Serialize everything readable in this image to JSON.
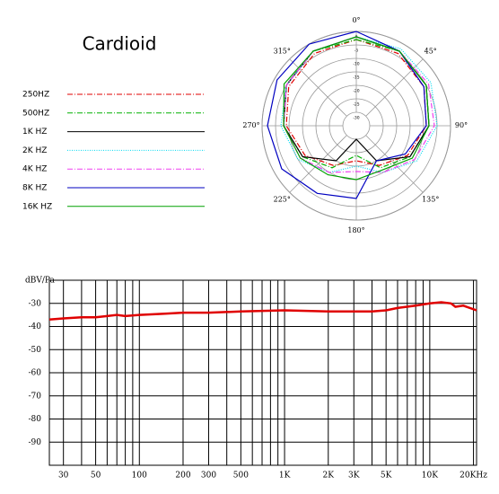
{
  "chart_data": [
    {
      "type": "polar",
      "title": "Cardioid",
      "theta": [
        0,
        30,
        60,
        90,
        120,
        150,
        180,
        210,
        240,
        270,
        300,
        330
      ],
      "angle_ticks": [
        {
          "value": 0,
          "label": "0°"
        },
        {
          "value": 45,
          "label": "45°"
        },
        {
          "value": 90,
          "label": "90°"
        },
        {
          "value": 135,
          "label": "135°"
        },
        {
          "value": 180,
          "label": "180°"
        },
        {
          "value": 225,
          "label": "225°"
        },
        {
          "value": 270,
          "label": "270°"
        },
        {
          "value": 315,
          "label": "315°"
        }
      ],
      "rlim": [
        -35,
        0
      ],
      "rticks": [
        0,
        -5,
        -10,
        -15,
        -20,
        -25,
        -30
      ],
      "series": [
        {
          "name": "250HZ",
          "color": "#e00000",
          "dash": "dashdot",
          "values": [
            -3,
            -4,
            -6,
            -9,
            -13,
            -18,
            -22,
            -18,
            -13,
            -9,
            -6,
            -4
          ]
        },
        {
          "name": "500HZ",
          "color": "#00b000",
          "dash": "dashdot",
          "values": [
            -3,
            -3,
            -5,
            -8,
            -12,
            -17,
            -24,
            -17,
            -12,
            -8,
            -5,
            -3
          ]
        },
        {
          "name": "1K  HZ",
          "color": "#000000",
          "dash": "solid",
          "values": [
            -2,
            -3,
            -5,
            -8,
            -12,
            -20,
            -30,
            -20,
            -12,
            -8,
            -5,
            -3
          ]
        },
        {
          "name": "2K  HZ",
          "color": "#00d8f0",
          "dash": "dotted",
          "values": [
            -2,
            -2,
            -3,
            -5,
            -9,
            -15,
            -20,
            -15,
            -10,
            -7,
            -5,
            -3
          ]
        },
        {
          "name": "4K  HZ",
          "color": "#f040f0",
          "dash": "dashdot",
          "values": [
            -2,
            -3,
            -4,
            -6,
            -10,
            -15,
            -18,
            -15,
            -11,
            -8,
            -5,
            -3
          ]
        },
        {
          "name": "8K  HZ",
          "color": "#0000c0",
          "dash": "solid",
          "values": [
            0,
            -3,
            -6,
            -9,
            -14,
            -20,
            -8,
            -6,
            -3,
            -2,
            -1,
            0
          ]
        },
        {
          "name": "16K  HZ",
          "color": "#00a000",
          "dash": "solid",
          "values": [
            -2,
            -3,
            -5,
            -8,
            -11,
            -16,
            -15,
            -14,
            -11,
            -8,
            -4,
            -3
          ]
        }
      ]
    },
    {
      "type": "line",
      "y_label": "dBV/Pa",
      "log_x": true,
      "grid": true,
      "color": "#e00000",
      "xlim": [
        24,
        21000
      ],
      "ylim": [
        -100,
        -20
      ],
      "yticks": [
        -30,
        -40,
        -50,
        -60,
        -70,
        -80,
        -90
      ],
      "xticks": [
        30,
        50,
        100,
        200,
        300,
        500,
        {
          "value": 1000,
          "label": "1K"
        },
        {
          "value": 2000,
          "label": "2K"
        },
        {
          "value": 3000,
          "label": "3K"
        },
        {
          "value": 5000,
          "label": "5K"
        },
        {
          "value": 10000,
          "label": "10K"
        },
        {
          "value": 20000,
          "label": "20KHz"
        }
      ],
      "xgrid": [
        30,
        40,
        50,
        60,
        70,
        80,
        90,
        100,
        200,
        300,
        400,
        500,
        600,
        700,
        800,
        900,
        1000,
        2000,
        3000,
        4000,
        5000,
        6000,
        7000,
        8000,
        9000,
        10000,
        20000
      ],
      "ygrid": [
        -20,
        -30,
        -40,
        -50,
        -60,
        -70,
        -80,
        -90,
        -100
      ],
      "x": [
        24,
        30,
        40,
        50,
        60,
        70,
        80,
        100,
        150,
        200,
        300,
        500,
        1000,
        2000,
        3000,
        4000,
        5000,
        6000,
        8000,
        10000,
        12000,
        14000,
        15000,
        17000,
        21000
      ],
      "values": [
        -37,
        -36.5,
        -36,
        -36,
        -35.5,
        -35,
        -35.5,
        -35,
        -34.5,
        -34,
        -34,
        -33.5,
        -33,
        -33.5,
        -33.5,
        -33.5,
        -33,
        -32,
        -31,
        -30,
        -29.5,
        -30,
        -31.5,
        -31,
        -33
      ]
    }
  ]
}
